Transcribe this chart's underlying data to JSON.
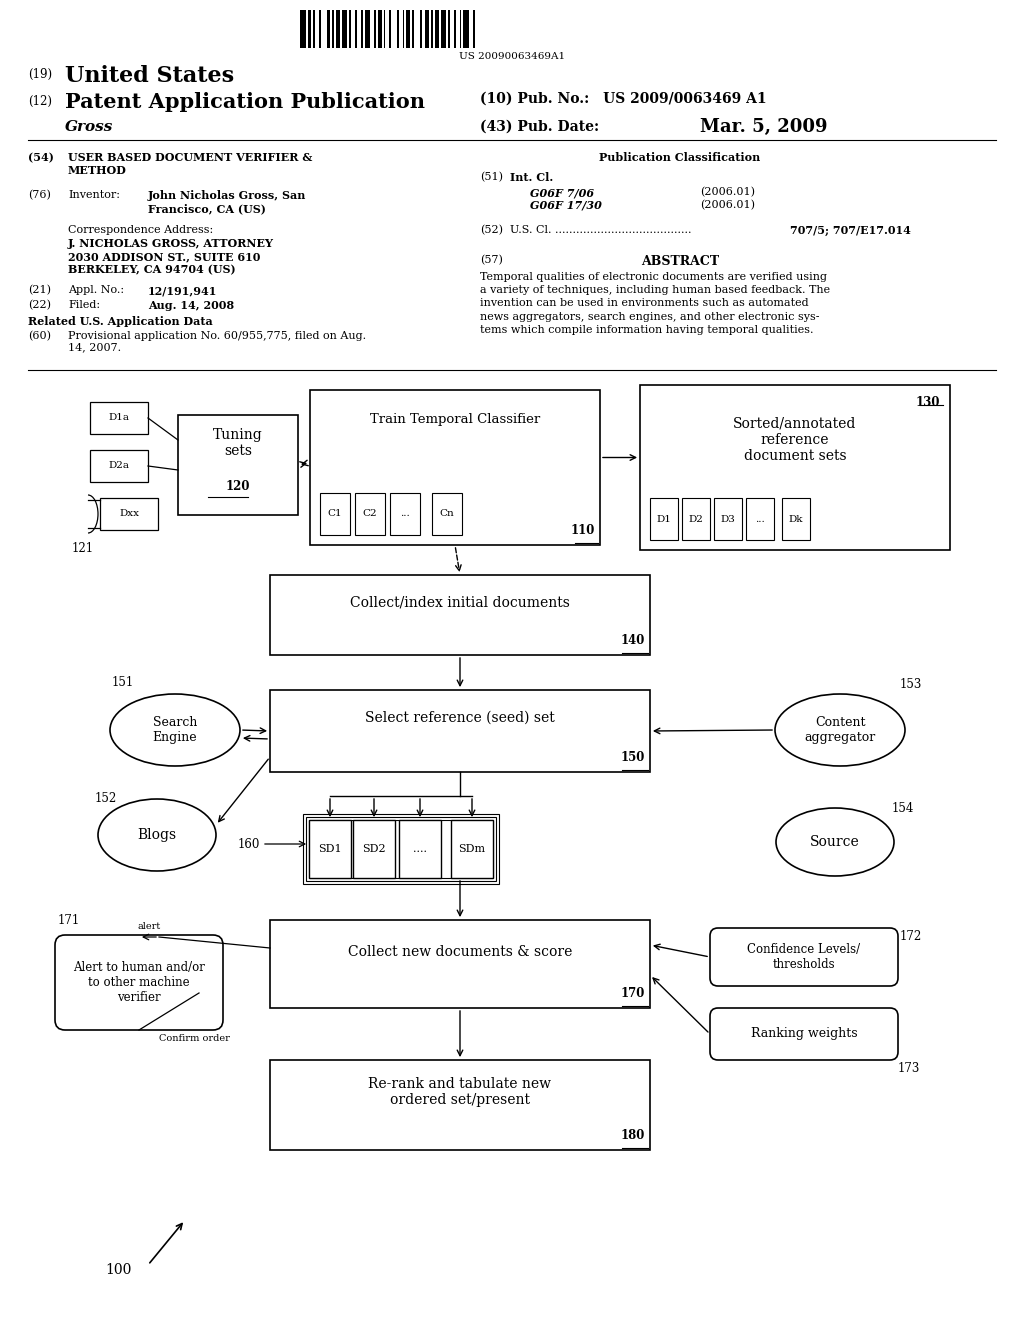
{
  "bg_color": "#ffffff",
  "page_width": 10.24,
  "page_height": 13.2,
  "barcode_text": "US 20090063469A1",
  "header_line1_num": "(19)",
  "header_line1_text": "United States",
  "header_line2_num": "(12)",
  "header_line2_text": "Patent Application Publication",
  "header_pub_no": "(10) Pub. No.: US 2009/0063469 A1",
  "header_gross": "Gross",
  "header_pub_date_label": "(43) Pub. Date:",
  "header_pub_date_value": "Mar. 5, 2009",
  "s54_num": "(54)",
  "s54_text": "USER BASED DOCUMENT VERIFIER &\nMETHOD",
  "s76_num": "(76)",
  "s76_label": "Inventor:",
  "s76_value": "John Nicholas Gross, San\nFrancisco, CA (US)",
  "corr_label": "Correspondence Address:",
  "corr_1": "J. NICHOLAS GROSS, ATTORNEY",
  "corr_2": "2030 ADDISON ST., SUITE 610",
  "corr_3": "BERKELEY, CA 94704 (US)",
  "s21_num": "(21)",
  "s21_label": "Appl. No.:",
  "s21_value": "12/191,941",
  "s22_num": "(22)",
  "s22_label": "Filed:",
  "s22_value": "Aug. 14, 2008",
  "related_header": "Related U.S. Application Data",
  "s60_num": "(60)",
  "s60_text": "Provisional application No. 60/955,775, filed on Aug.\n14, 2007.",
  "pub_class": "Publication Classification",
  "s51_num": "(51)",
  "s51_label": "Int. Cl.",
  "s51_line1": "G06F 7/06",
  "s51_year1": "(2006.01)",
  "s51_line2": "G06F 17/30",
  "s51_year2": "(2006.01)",
  "s52_num": "(52)",
  "s52_label": "U.S. Cl. .......................................",
  "s52_value": "707/5; 707/E17.014",
  "s57_num": "(57)",
  "s57_header": "ABSTRACT",
  "s57_text": "Temporal qualities of electronic documents are verified using\na variety of techniques, including human based feedback. The\ninvention can be used in environments such as automated\nnews aggregators, search engines, and other electronic sys-\ntems which compile information having temporal qualities."
}
